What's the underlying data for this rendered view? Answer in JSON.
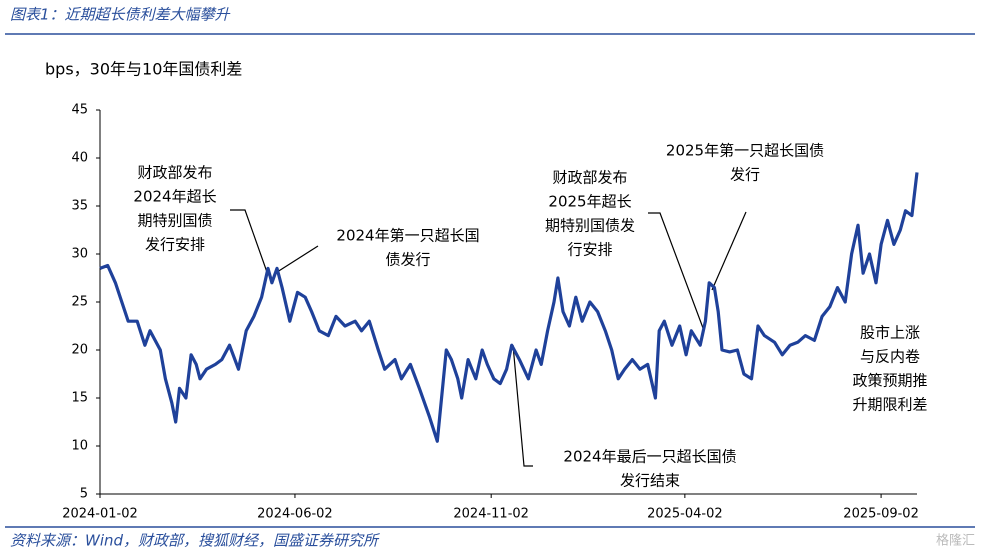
{
  "header": {
    "title": "图表1：近期超长债利差大幅攀升"
  },
  "chart_data": {
    "type": "line",
    "y_label": "bps，30年与10年国债利差",
    "color": "#1f419a",
    "x": [
      "2024-01-02",
      "2024-01-08",
      "2024-01-14",
      "2024-01-19",
      "2024-01-24",
      "2024-01-31",
      "2024-02-06",
      "2024-02-10",
      "2024-02-18",
      "2024-02-22",
      "2024-02-27",
      "2024-03-01",
      "2024-03-04",
      "2024-03-09",
      "2024-03-13",
      "2024-03-17",
      "2024-03-20",
      "2024-03-25",
      "2024-04-01",
      "2024-04-06",
      "2024-04-12",
      "2024-04-19",
      "2024-04-25",
      "2024-05-01",
      "2024-05-07",
      "2024-05-12",
      "2024-05-15",
      "2024-05-19",
      "2024-05-23",
      "2024-05-29",
      "2024-06-04",
      "2024-06-10",
      "2024-06-15",
      "2024-06-21",
      "2024-06-28",
      "2024-07-04",
      "2024-07-11",
      "2024-07-19",
      "2024-07-24",
      "2024-07-30",
      "2024-08-06",
      "2024-08-11",
      "2024-08-19",
      "2024-08-24",
      "2024-08-31",
      "2024-09-07",
      "2024-09-15",
      "2024-09-21",
      "2024-09-28",
      "2024-10-02",
      "2024-10-07",
      "2024-10-10",
      "2024-10-15",
      "2024-10-21",
      "2024-10-26",
      "2024-10-30",
      "2024-11-04",
      "2024-11-09",
      "2024-11-14",
      "2024-11-18",
      "2024-11-24",
      "2024-12-01",
      "2024-12-07",
      "2024-12-11",
      "2024-12-16",
      "2024-12-21",
      "2024-12-24",
      "2024-12-28",
      "2025-01-02",
      "2025-01-07",
      "2025-01-12",
      "2025-01-18",
      "2025-01-24",
      "2025-01-30",
      "2025-02-04",
      "2025-02-09",
      "2025-02-14",
      "2025-02-20",
      "2025-02-26",
      "2025-03-04",
      "2025-03-10",
      "2025-03-13",
      "2025-03-17",
      "2025-03-23",
      "2025-03-29",
      "2025-04-03",
      "2025-04-07",
      "2025-04-14",
      "2025-04-18",
      "2025-04-21",
      "2025-04-25",
      "2025-04-28",
      "2025-05-01",
      "2025-05-07",
      "2025-05-13",
      "2025-05-18",
      "2025-05-24",
      "2025-05-29",
      "2025-06-03",
      "2025-06-11",
      "2025-06-17",
      "2025-06-23",
      "2025-06-29",
      "2025-07-05",
      "2025-07-12",
      "2025-07-18",
      "2025-07-24",
      "2025-07-30",
      "2025-08-05",
      "2025-08-10",
      "2025-08-15",
      "2025-08-19",
      "2025-08-24",
      "2025-08-29",
      "2025-09-02",
      "2025-09-07",
      "2025-09-12",
      "2025-09-17",
      "2025-09-21",
      "2025-09-26",
      "2025-09-30"
    ],
    "values": [
      28.5,
      28.8,
      27,
      25,
      23,
      23,
      20.5,
      22,
      20,
      17,
      14.5,
      12.5,
      16,
      15,
      19.5,
      18.5,
      17,
      18,
      18.5,
      19,
      20.5,
      18,
      22,
      23.5,
      25.5,
      28.5,
      27,
      28.5,
      26.5,
      23,
      26,
      25.5,
      24,
      22,
      21.5,
      23.5,
      22.5,
      23,
      22,
      23,
      20,
      18,
      19,
      17,
      18.5,
      16,
      13,
      10.5,
      20,
      19,
      17,
      15,
      19,
      17,
      20,
      18.5,
      17,
      16.5,
      18,
      20.5,
      19,
      17,
      20,
      18.5,
      22,
      25,
      27.5,
      24,
      22.5,
      25.5,
      23,
      25,
      24,
      22,
      20,
      17,
      18,
      19,
      18,
      18.5,
      15,
      22,
      23,
      20.5,
      22.5,
      19.5,
      22,
      20.5,
      23,
      27,
      26.5,
      24,
      20,
      19.8,
      20,
      17.5,
      17,
      22.5,
      21.5,
      20.8,
      19.5,
      20.5,
      20.8,
      21.5,
      21,
      23.5,
      24.5,
      26.5,
      25,
      30,
      33,
      28,
      30,
      27,
      31,
      33.5,
      31,
      32.5,
      34.5,
      34,
      38.5
    ],
    "xlim": [
      "2024-01-02",
      "2025-09-30"
    ],
    "xticks": [
      "2024-01-02",
      "2024-06-02",
      "2024-11-02",
      "2025-04-02",
      "2025-09-02"
    ],
    "ylim": [
      5,
      45
    ],
    "yticks": [
      5,
      10,
      15,
      20,
      25,
      30,
      35,
      40,
      45
    ],
    "annotations": [
      {
        "lines": [
          "财政部发布",
          "2024年超长",
          "期特别国债",
          "发行安排"
        ]
      },
      {
        "lines": [
          "2024年第一只超长国",
          "债发行"
        ]
      },
      {
        "lines": [
          "财政部发布",
          "2025年超长",
          "期特别国债发",
          "行安排"
        ]
      },
      {
        "lines": [
          "2025年第一只超长国债",
          "发行"
        ]
      },
      {
        "lines": [
          "2024年最后一只超长国债",
          "发行结束"
        ]
      },
      {
        "lines": [
          "股市上涨",
          "与反内卷",
          "政策预期推",
          "升期限利差"
        ]
      }
    ]
  },
  "footer": {
    "source": "资料来源：Wind，财政部，搜狐财经，国盛证券研究所",
    "watermark": "格隆汇"
  }
}
